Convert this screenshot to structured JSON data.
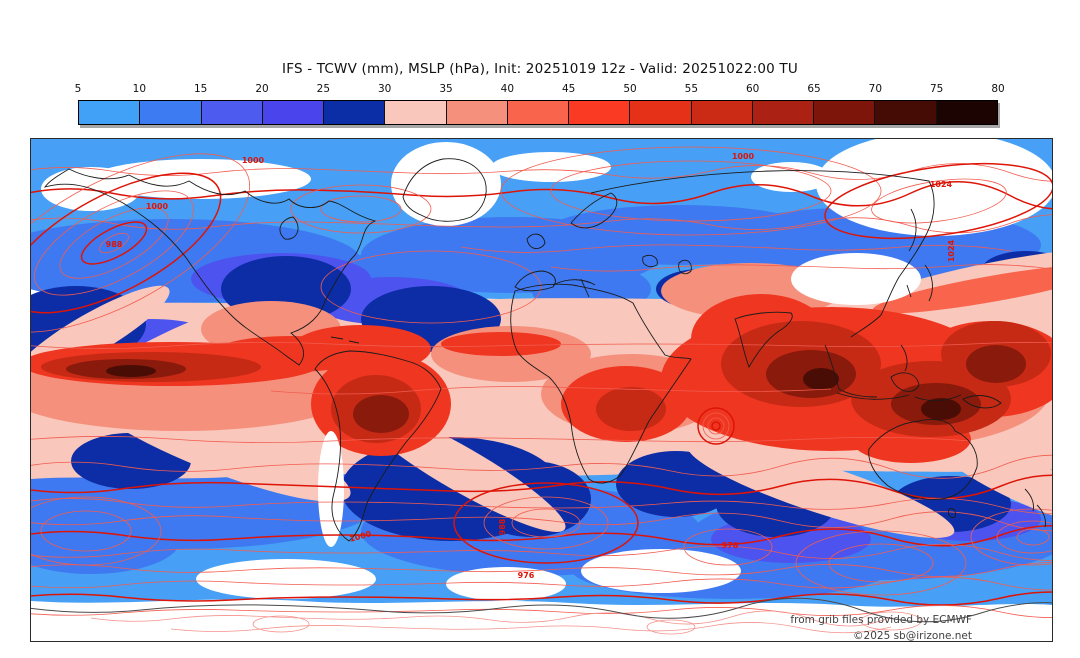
{
  "title": "IFS - TCWV (mm), MSLP (hPa), Init: 20251019 12z - Valid: 20251022:00 TU",
  "colorbar": {
    "unit_min": 5,
    "unit_max": 80,
    "ticks": [
      "5",
      "10",
      "15",
      "20",
      "25",
      "30",
      "35",
      "40",
      "45",
      "50",
      "55",
      "60",
      "65",
      "70",
      "75",
      "80"
    ],
    "colors": [
      "#41a1f6",
      "#3c7bf2",
      "#4d5bef",
      "#4a44ec",
      "#0b2da6",
      "#f9c7bb",
      "#f5907d",
      "#f8654c",
      "#fa3a22",
      "#e63119",
      "#cb2a14",
      "#ab2113",
      "#7e150a",
      "#440c05",
      "#1c0402"
    ]
  },
  "map": {
    "field_palette": {
      "light_blue": "#47a0f5",
      "medium_blue": "#3e79f2",
      "violet_blue": "#4d53ee",
      "navy": "#0c2da6",
      "pink": "#f9c7bb",
      "salmon": "#f5907d",
      "orange_red": "#f8654c",
      "red": "#ef3620",
      "dark_red": "#c62a15",
      "maroon": "#8a1a0c",
      "deep_maroon": "#4a0d05",
      "white": "#ffffff"
    },
    "contour_color_major": "#dd1407",
    "contour_color_minor": "#f25c50",
    "coastline_color": "#1b1b1b",
    "contour_labels": [
      {
        "text": "1000"
      },
      {
        "text": "1000"
      },
      {
        "text": "1024"
      },
      {
        "text": "988"
      },
      {
        "text": "988"
      },
      {
        "text": "976"
      },
      {
        "text": "976"
      },
      {
        "text": "1000"
      },
      {
        "text": "1024"
      },
      {
        "text": "1000"
      }
    ],
    "attribution_line1": "from grib files provided by ECMWF",
    "attribution_line2": "©2025 sb@irizone.net"
  }
}
